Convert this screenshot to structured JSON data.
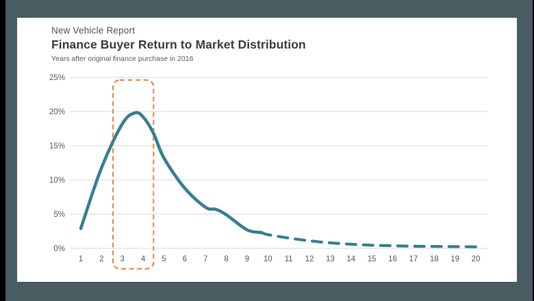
{
  "window": {
    "frame_color": "#000000",
    "mat_color": "#485D62",
    "card_color": "#FFFFFF"
  },
  "header": {
    "report_label": "New Vehicle Report",
    "title": "Finance Buyer Return to Market Distribution",
    "subtitle": "Years after original finance purchase in 2016"
  },
  "chart_data": {
    "type": "line",
    "title": "Finance Buyer Return to Market Distribution",
    "subtitle": "Years after original finance purchase in 2016",
    "x": [
      1,
      2,
      3,
      3.6,
      4,
      4.5,
      5,
      6,
      7,
      7.5,
      8,
      9,
      9.7,
      10,
      11,
      12,
      13,
      14,
      15,
      16,
      17,
      18,
      19,
      20
    ],
    "y_pct": [
      2.9,
      11.8,
      18.2,
      19.8,
      19.2,
      16.8,
      13.2,
      8.8,
      6.0,
      5.7,
      4.9,
      2.7,
      2.3,
      2.0,
      1.5,
      1.1,
      0.8,
      0.6,
      0.45,
      0.38,
      0.3,
      0.28,
      0.25,
      0.22
    ],
    "peak": {
      "x": 3.6,
      "y_pct": 19.8
    },
    "solid_until_x": 9.7,
    "x_ticks": [
      1,
      2,
      3,
      4,
      5,
      6,
      7,
      8,
      9,
      10,
      11,
      12,
      13,
      14,
      15,
      16,
      17,
      18,
      19,
      20
    ],
    "y_ticks_pct": [
      0,
      5,
      10,
      15,
      20,
      25
    ],
    "xlim": [
      1,
      20
    ],
    "ylim": [
      0,
      25
    ],
    "grid": true,
    "legend": false,
    "line_color": "#35808F",
    "grid_color": "#DADADA",
    "tick_label_color": "#595959",
    "highlight": {
      "style": "dashed-rounded-rect",
      "x_start": 2.55,
      "x_end": 4.5,
      "y_top_pct": 24.6,
      "color": "#EC8B4E"
    }
  }
}
